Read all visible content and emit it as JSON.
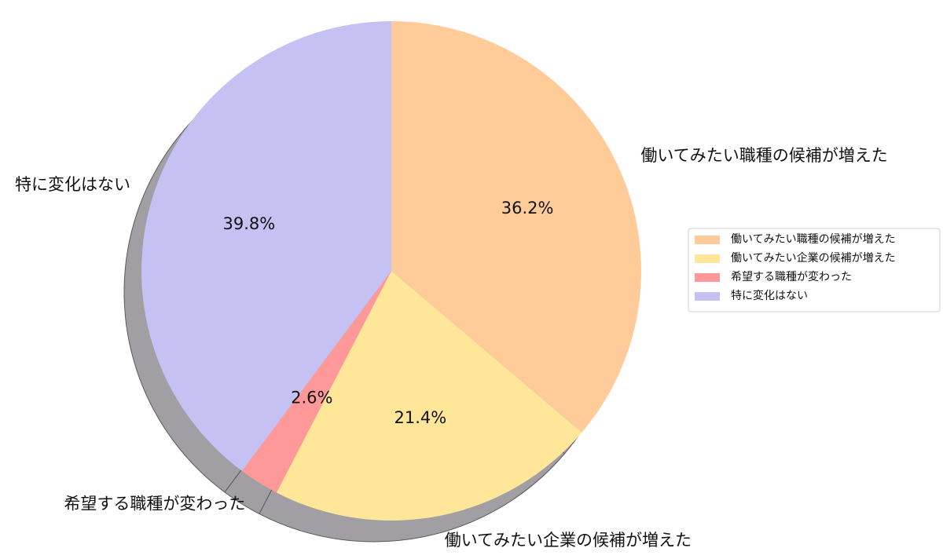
{
  "chart_data": {
    "type": "pie",
    "title": "",
    "shadow": true,
    "start_angle_deg": 90,
    "direction": "clockwise",
    "slices": [
      {
        "label": "働いてみたい職種の候補が増えた",
        "value": 36.2,
        "pct_label": "36.2%",
        "color": "#FFCC99"
      },
      {
        "label": "働いてみたい企業の候補が増えた",
        "value": 21.4,
        "pct_label": "21.4%",
        "color": "#FFE699"
      },
      {
        "label": "希望する職種が変わった",
        "value": 2.6,
        "pct_label": "2.6%",
        "color": "#FF9999"
      },
      {
        "label": "特に変化はない",
        "value": 39.8,
        "pct_label": "39.8%",
        "color": "#C5C1F2"
      }
    ],
    "legend": {
      "placement": "right",
      "entries": [
        "働いてみたい職種の候補が増えた",
        "働いてみたい企業の候補が増えた",
        "希望する職種が変わった",
        "特に変化はない"
      ]
    }
  }
}
